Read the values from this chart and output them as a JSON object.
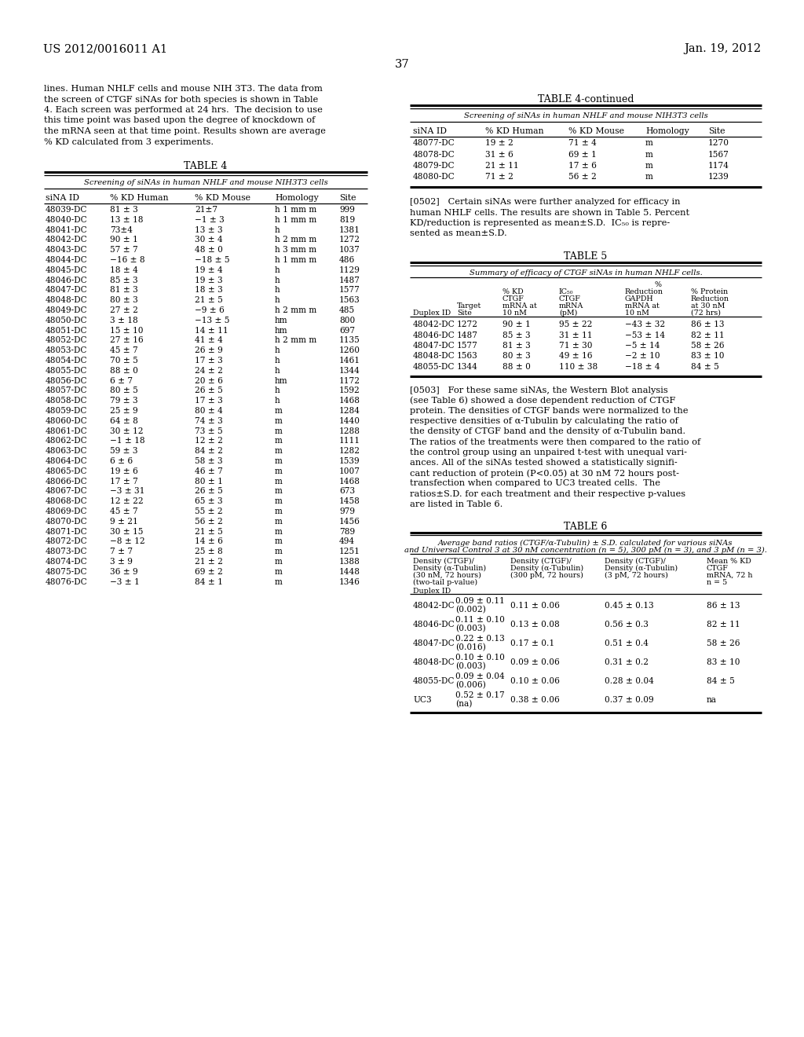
{
  "page_header_left": "US 2012/0016011 A1",
  "page_header_right": "Jan. 19, 2012",
  "page_number": "37",
  "background_color": "#ffffff",
  "font_size_header": 10.5,
  "font_size_body": 8.2,
  "font_size_table_title": 9.0,
  "font_size_subtitle": 7.2,
  "font_size_col_header": 7.8,
  "font_size_data": 7.6
}
